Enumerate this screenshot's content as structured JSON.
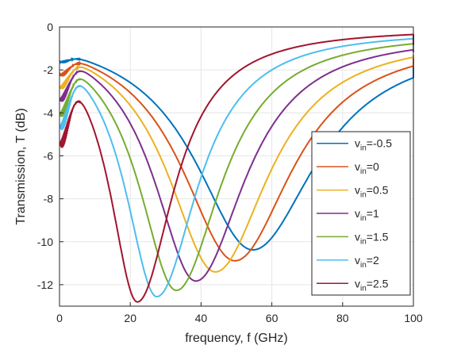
{
  "chart_data": {
    "type": "line",
    "title": "",
    "xlabel": "frequency, f (GHz)",
    "ylabel": "Transmission, T (dB)",
    "xlim": [
      0,
      100
    ],
    "ylim": [
      -13,
      0
    ],
    "xticks": [
      0,
      20,
      40,
      60,
      80,
      100
    ],
    "yticks": [
      0,
      -2,
      -4,
      -6,
      -8,
      -10,
      -12
    ],
    "grid": true,
    "legend_position": "right",
    "series": [
      {
        "name": "-0.5",
        "color": "#0072BD",
        "min_x": 54.5,
        "min_y": -10.25,
        "w_left": 20,
        "w_right": 22
      },
      {
        "name": "0",
        "color": "#D95319",
        "min_x": 49.5,
        "min_y": -10.8,
        "w_left": 18.5,
        "w_right": 20
      },
      {
        "name": "0.5",
        "color": "#EDB120",
        "min_x": 44.0,
        "min_y": -11.35,
        "w_left": 16.5,
        "w_right": 18.5
      },
      {
        "name": "1",
        "color": "#7E2F8E",
        "min_x": 38.5,
        "min_y": -11.8,
        "w_left": 14.5,
        "w_right": 17
      },
      {
        "name": "1.5",
        "color": "#77AC30",
        "min_x": 33.0,
        "min_y": -12.25,
        "w_left": 13,
        "w_right": 15.5
      },
      {
        "name": "2",
        "color": "#4DBEEE",
        "min_x": 27.5,
        "min_y": -12.55,
        "w_left": 11,
        "w_right": 14
      },
      {
        "name": "2.5",
        "color": "#A2142F",
        "min_x": 22.0,
        "min_y": -12.8,
        "w_left": 9.5,
        "w_right": 12.5
      }
    ],
    "legend_prefix": "v",
    "legend_subscript": "in"
  }
}
